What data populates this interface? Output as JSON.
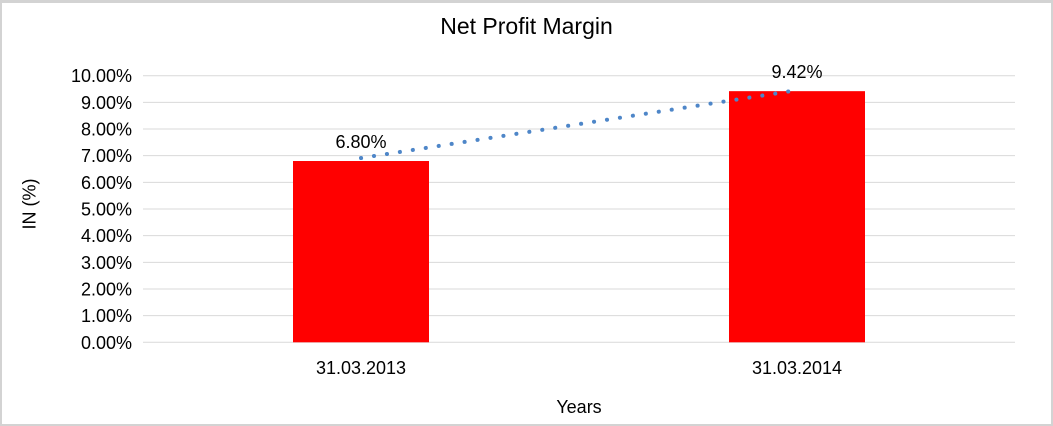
{
  "chart_data": {
    "type": "bar",
    "title": "Net Profit Margin",
    "xlabel": "Years",
    "ylabel": "IN (%)",
    "categories": [
      "31.03.2013",
      "31.03.2014"
    ],
    "values": [
      6.8,
      9.42
    ],
    "data_labels": [
      "6.80%",
      "9.42%"
    ],
    "ylim": [
      0,
      10
    ],
    "ytick_step": 1,
    "ytick_labels": [
      "0.00%",
      "1.00%",
      "2.00%",
      "3.00%",
      "4.00%",
      "5.00%",
      "6.00%",
      "7.00%",
      "8.00%",
      "9.00%",
      "10.00%"
    ],
    "grid": true,
    "legend": "none",
    "trendline": {
      "type": "linear",
      "style": "dotted",
      "color": "#4E86C8"
    },
    "colors": {
      "bar": "#FF0000",
      "gridline": "#D9D9D9",
      "text": "#000000",
      "frame_border": "#D3D3D3",
      "background": "#FFFFFF"
    }
  }
}
